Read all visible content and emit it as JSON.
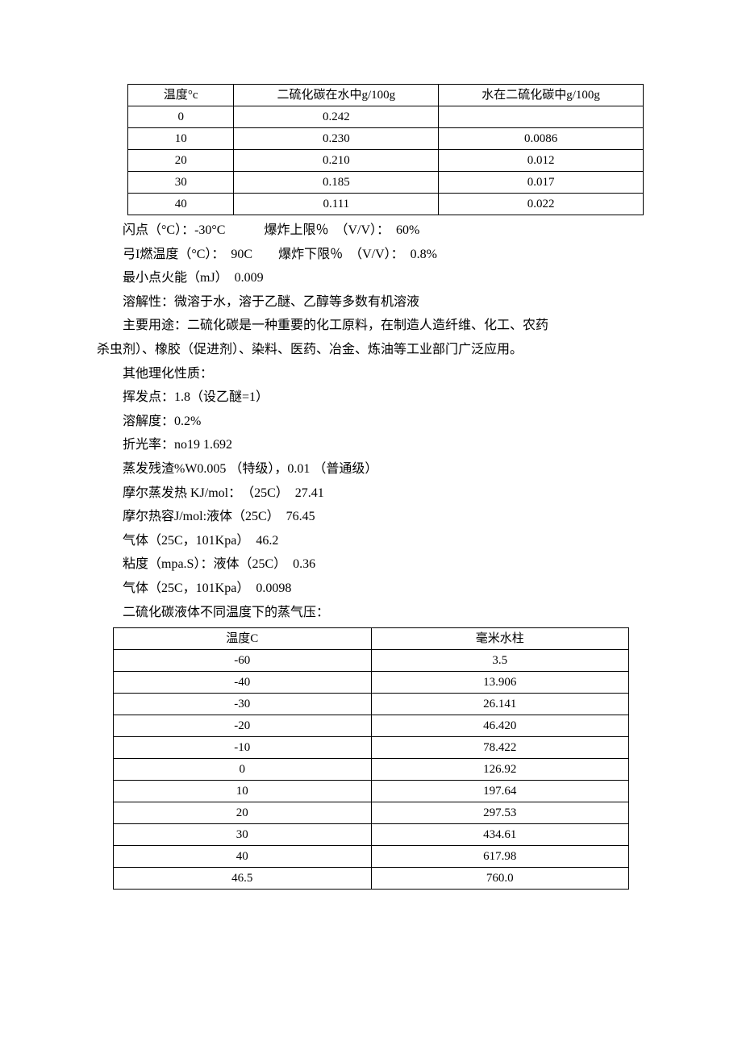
{
  "table1": {
    "headers": [
      "温度°c",
      "二硫化碳在水中g/100g",
      "水在二硫化碳中g/100g"
    ],
    "rows": [
      [
        "0",
        "0.242",
        ""
      ],
      [
        "10",
        "0.230",
        "0.0086"
      ],
      [
        "20",
        "0.210",
        "0.012"
      ],
      [
        "30",
        "0.185",
        "0.017"
      ],
      [
        "40",
        "0.111",
        "0.022"
      ]
    ]
  },
  "paragraphs": [
    "闪点（°C）：-30°C　　　爆炸上限％　（V/V）：　60%",
    "弓I燃温度（°C）：　90C　　爆炸下限％　（V/V）：　0.8%",
    "最小点火能（mJ）　0.009",
    "溶解性：微溶于水，溶于乙醚、乙醇等多数有机溶液",
    "主要用途：二硫化碳是一种重要的化工原料，在制造人造纤维、化工、农药杀虫剂）、橡胶（促进剂）、染料、医药、冶金、炼油等工业部门广泛应用。",
    "其他理化性质：",
    "挥发点：1.8（设乙醚=1）",
    "溶解度：0.2%",
    "折光率：no19 1.692",
    "蒸发残渣%W0.005 （特级），0.01 （普通级）",
    "摩尔蒸发热 KJ/mol：　（25C）　27.41",
    "摩尔热容J/mol:液体（25C）　76.45",
    "气体（25C，101Kpa）　46.2",
    "粘度（mpa.S）：液体（25C）　0.36",
    "气体（25C，101Kpa）　0.0098",
    "二硫化碳液体不同温度下的蒸气压："
  ],
  "paragraph_wrap_index": 4,
  "paragraph_wrap_break_after": "农药",
  "table2": {
    "headers": [
      "温度C",
      "毫米水柱"
    ],
    "rows": [
      [
        "-60",
        "3.5"
      ],
      [
        "-40",
        "13.906"
      ],
      [
        "-30",
        "26.141"
      ],
      [
        "-20",
        "46.420"
      ],
      [
        "-10",
        "78.422"
      ],
      [
        "0",
        "126.92"
      ],
      [
        "10",
        "197.64"
      ],
      [
        "20",
        "297.53"
      ],
      [
        "30",
        "434.61"
      ],
      [
        "40",
        "617.98"
      ],
      [
        "46.5",
        "760.0"
      ]
    ]
  }
}
